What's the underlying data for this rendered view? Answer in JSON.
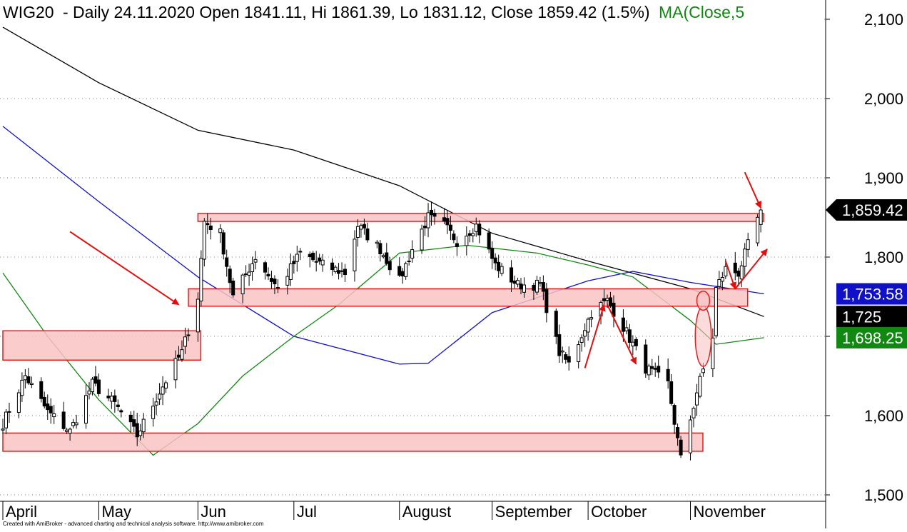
{
  "header": {
    "symbol": "WIG20",
    "info": "- Daily 24.11.2020 Open 1841.11, Hi 1861.39, Lo 1831.12, Close 1859.42 (1.5%)",
    "ma_label": "MA(Close,5"
  },
  "footer": {
    "credit": "Created with AmiBroker - advanced charting and technical analysis software. http://www.amibroker.com"
  },
  "colors": {
    "zone_fill": "#f9c3c3",
    "zone_stroke": "#e02020",
    "arrow": "#e01010",
    "ma_black": "#000000",
    "ma_blue": "#1010c8",
    "ma_green": "#118811",
    "ma_label": "#118811"
  },
  "chart_data": {
    "type": "candlestick",
    "x_range": [
      "2020-04-01",
      "2020-11-30"
    ],
    "ylim": [
      1495,
      2115
    ],
    "y_ticks": [
      {
        "value": 1500,
        "label": "1,500"
      },
      {
        "value": 1600,
        "label": "1,600"
      },
      {
        "value": 1700,
        "label": "1,700"
      },
      {
        "value": 1800,
        "label": "1,800"
      },
      {
        "value": 1900,
        "label": "1,900"
      },
      {
        "value": 2000,
        "label": "2,000"
      },
      {
        "value": 2100,
        "label": "2,100"
      }
    ],
    "grid": true,
    "months": [
      {
        "label": "April",
        "date": "2020-04-01"
      },
      {
        "label": "May",
        "date": "2020-05-01"
      },
      {
        "label": "Jun",
        "date": "2020-06-01"
      },
      {
        "label": "Jul",
        "date": "2020-07-01"
      },
      {
        "label": "August",
        "date": "2020-08-03"
      },
      {
        "label": "September",
        "date": "2020-09-01"
      },
      {
        "label": "October",
        "date": "2020-10-01"
      },
      {
        "label": "November",
        "date": "2020-11-02"
      }
    ],
    "key_points": [
      {
        "date": "2020-04-01",
        "close": 1590
      },
      {
        "date": "2020-04-08",
        "close": 1650
      },
      {
        "date": "2020-04-15",
        "close": 1605
      },
      {
        "date": "2020-04-22",
        "close": 1580
      },
      {
        "date": "2020-04-29",
        "close": 1640
      },
      {
        "date": "2020-05-06",
        "close": 1615
      },
      {
        "date": "2020-05-13",
        "close": 1575
      },
      {
        "date": "2020-05-20",
        "close": 1630
      },
      {
        "date": "2020-05-27",
        "close": 1680
      },
      {
        "date": "2020-06-01",
        "close": 1750
      },
      {
        "date": "2020-06-03",
        "close": 1845
      },
      {
        "date": "2020-06-08",
        "close": 1830
      },
      {
        "date": "2020-06-12",
        "close": 1750
      },
      {
        "date": "2020-06-19",
        "close": 1800
      },
      {
        "date": "2020-06-26",
        "close": 1760
      },
      {
        "date": "2020-07-03",
        "close": 1805
      },
      {
        "date": "2020-07-10",
        "close": 1790
      },
      {
        "date": "2020-07-17",
        "close": 1780
      },
      {
        "date": "2020-07-21",
        "close": 1840
      },
      {
        "date": "2020-07-28",
        "close": 1810
      },
      {
        "date": "2020-08-03",
        "close": 1770
      },
      {
        "date": "2020-08-07",
        "close": 1810
      },
      {
        "date": "2020-08-12",
        "close": 1850
      },
      {
        "date": "2020-08-17",
        "close": 1840
      },
      {
        "date": "2020-08-21",
        "close": 1820
      },
      {
        "date": "2020-08-27",
        "close": 1840
      },
      {
        "date": "2020-09-02",
        "close": 1790
      },
      {
        "date": "2020-09-09",
        "close": 1765
      },
      {
        "date": "2020-09-16",
        "close": 1765
      },
      {
        "date": "2020-09-22",
        "close": 1680
      },
      {
        "date": "2020-09-25",
        "close": 1665
      },
      {
        "date": "2020-10-02",
        "close": 1730
      },
      {
        "date": "2020-10-07",
        "close": 1745
      },
      {
        "date": "2020-10-13",
        "close": 1705
      },
      {
        "date": "2020-10-19",
        "close": 1660
      },
      {
        "date": "2020-10-26",
        "close": 1640
      },
      {
        "date": "2020-10-30",
        "close": 1545
      },
      {
        "date": "2020-11-04",
        "close": 1630
      },
      {
        "date": "2020-11-09",
        "close": 1700
      },
      {
        "date": "2020-11-10",
        "close": 1760
      },
      {
        "date": "2020-11-13",
        "close": 1785
      },
      {
        "date": "2020-11-17",
        "close": 1780
      },
      {
        "date": "2020-11-20",
        "close": 1815
      },
      {
        "date": "2020-11-24",
        "close": 1859.42
      }
    ],
    "last_candle": {
      "date": "2020-11-24",
      "open": 1841.11,
      "high": 1861.39,
      "low": 1831.12,
      "close": 1859.42
    },
    "moving_averages": [
      {
        "color": "#000000",
        "points": [
          {
            "date": "2020-04-01",
            "value": 2090
          },
          {
            "date": "2020-05-01",
            "value": 2020
          },
          {
            "date": "2020-06-01",
            "value": 1960
          },
          {
            "date": "2020-07-01",
            "value": 1935
          },
          {
            "date": "2020-08-03",
            "value": 1890
          },
          {
            "date": "2020-09-01",
            "value": 1830
          },
          {
            "date": "2020-10-01",
            "value": 1795
          },
          {
            "date": "2020-11-02",
            "value": 1760
          },
          {
            "date": "2020-11-25",
            "value": 1725
          }
        ]
      },
      {
        "color": "#1010c8",
        "points": [
          {
            "date": "2020-04-01",
            "value": 1965
          },
          {
            "date": "2020-05-01",
            "value": 1870
          },
          {
            "date": "2020-06-01",
            "value": 1775
          },
          {
            "date": "2020-07-01",
            "value": 1700
          },
          {
            "date": "2020-08-03",
            "value": 1665
          },
          {
            "date": "2020-08-12",
            "value": 1666
          },
          {
            "date": "2020-09-01",
            "value": 1730
          },
          {
            "date": "2020-10-01",
            "value": 1770
          },
          {
            "date": "2020-10-15",
            "value": 1782
          },
          {
            "date": "2020-11-02",
            "value": 1768
          },
          {
            "date": "2020-11-25",
            "value": 1753.58
          }
        ]
      },
      {
        "color": "#118811",
        "points": [
          {
            "date": "2020-04-01",
            "value": 1780
          },
          {
            "date": "2020-04-15",
            "value": 1700
          },
          {
            "date": "2020-05-01",
            "value": 1620
          },
          {
            "date": "2020-05-18",
            "value": 1550
          },
          {
            "date": "2020-06-01",
            "value": 1590
          },
          {
            "date": "2020-06-15",
            "value": 1650
          },
          {
            "date": "2020-07-01",
            "value": 1700
          },
          {
            "date": "2020-07-15",
            "value": 1740
          },
          {
            "date": "2020-08-03",
            "value": 1805
          },
          {
            "date": "2020-08-24",
            "value": 1815
          },
          {
            "date": "2020-09-15",
            "value": 1805
          },
          {
            "date": "2020-10-01",
            "value": 1790
          },
          {
            "date": "2020-10-15",
            "value": 1775
          },
          {
            "date": "2020-11-02",
            "value": 1720
          },
          {
            "date": "2020-11-10",
            "value": 1690
          },
          {
            "date": "2020-11-25",
            "value": 1698.25
          }
        ]
      }
    ],
    "price_labels": [
      {
        "text": "1,859.42",
        "value": 1859.42,
        "bg": "#000000",
        "fg": "#ffffff",
        "pointer": true
      },
      {
        "text": "1,753.58",
        "value": 1753.58,
        "bg": "#1010c8",
        "fg": "#ffffff",
        "pointer": false
      },
      {
        "text": "1,725",
        "value": 1725,
        "bg": "#000000",
        "fg": "#ffffff",
        "pointer": false
      },
      {
        "text": "1,698.25",
        "value": 1698.25,
        "bg": "#118811",
        "fg": "#ffffff",
        "pointer": false
      }
    ],
    "zones": [
      {
        "from": "2020-06-01",
        "to": "2020-11-24",
        "low": 1845,
        "high": 1855
      },
      {
        "from": "2020-05-29",
        "to": "2020-11-19",
        "low": 1738,
        "high": 1760
      },
      {
        "from": "2020-04-01",
        "to": "2020-06-01",
        "low": 1670,
        "high": 1707
      },
      {
        "from": "2020-04-01",
        "to": "2020-11-05",
        "low": 1555,
        "high": 1578
      }
    ],
    "ellipses": [
      {
        "cx": "2020-11-06",
        "cy": 1700,
        "ry": 38,
        "rx_days": 2.5
      },
      {
        "cx": "2020-11-06",
        "cy": 1745,
        "ry": 12,
        "rx_days": 2
      }
    ],
    "arrows": [
      {
        "from": {
          "date": "2020-04-22",
          "value": 1832
        },
        "to": {
          "date": "2020-05-26",
          "value": 1740
        }
      },
      {
        "from": {
          "date": "2020-11-19",
          "value": 1907
        },
        "to": {
          "date": "2020-11-24",
          "value": 1862
        }
      },
      {
        "from": {
          "date": "2020-09-30",
          "value": 1660
        },
        "to": {
          "date": "2020-10-06",
          "value": 1740
        }
      },
      {
        "from": {
          "date": "2020-10-07",
          "value": 1740
        },
        "to": {
          "date": "2020-10-16",
          "value": 1665
        }
      },
      {
        "from": {
          "date": "2020-11-13",
          "value": 1795
        },
        "to": {
          "date": "2020-11-16",
          "value": 1760
        }
      },
      {
        "from": {
          "date": "2020-11-16",
          "value": 1760
        },
        "to": {
          "date": "2020-11-26",
          "value": 1810
        }
      }
    ]
  }
}
